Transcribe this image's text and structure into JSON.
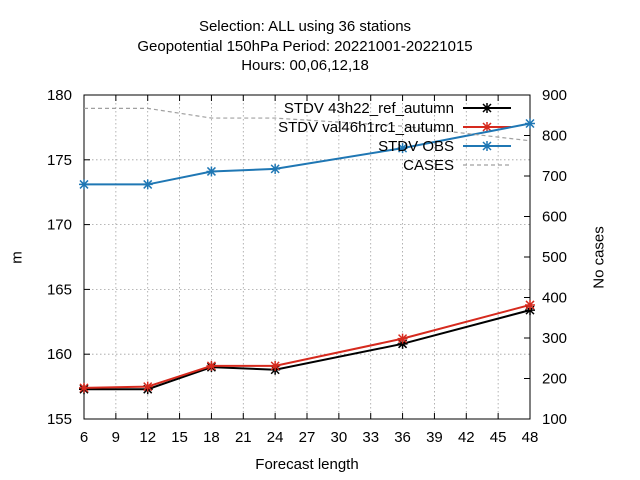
{
  "title": {
    "line1": "Selection: ALL using    36 stations",
    "line2": "Geopotential 150hPa   Period: 20221001-20221015",
    "line3": "Hours:  00,06,12,18"
  },
  "chart_data": {
    "type": "line",
    "xlabel": "Forecast length",
    "ylabel": "m",
    "y2label": "No cases",
    "x": [
      6,
      12,
      18,
      24,
      36,
      48
    ],
    "xlim": [
      6,
      48
    ],
    "xticks": [
      6,
      9,
      12,
      15,
      18,
      21,
      24,
      27,
      30,
      33,
      36,
      39,
      42,
      45,
      48
    ],
    "ylim": [
      155,
      180
    ],
    "yticks": [
      155,
      160,
      165,
      170,
      175,
      180
    ],
    "y2lim": [
      100,
      900
    ],
    "y2ticks": [
      100,
      200,
      300,
      400,
      500,
      600,
      700,
      800,
      900
    ],
    "grid": true,
    "legend_position": "top-right",
    "series": [
      {
        "name": "STDV 43h22_ref_autumn",
        "axis": "y",
        "color": "#000000",
        "marker": "x-star",
        "values": [
          157.3,
          157.3,
          159.0,
          158.8,
          160.8,
          163.4
        ]
      },
      {
        "name": "STDV val46h1rc1_autumn",
        "axis": "y",
        "color": "#d62a1e",
        "marker": "x-star",
        "values": [
          157.4,
          157.5,
          159.1,
          159.1,
          161.2,
          163.8
        ]
      },
      {
        "name": "STDV OBS",
        "axis": "y",
        "color": "#1f77b4",
        "marker": "x-star",
        "values": [
          173.1,
          173.1,
          174.1,
          174.3,
          175.9,
          177.8
        ]
      },
      {
        "name": "CASES",
        "axis": "y2",
        "color": "#a0a0a0",
        "dashed": true,
        "values": [
          867,
          867,
          843,
          843,
          823,
          787
        ]
      }
    ]
  }
}
